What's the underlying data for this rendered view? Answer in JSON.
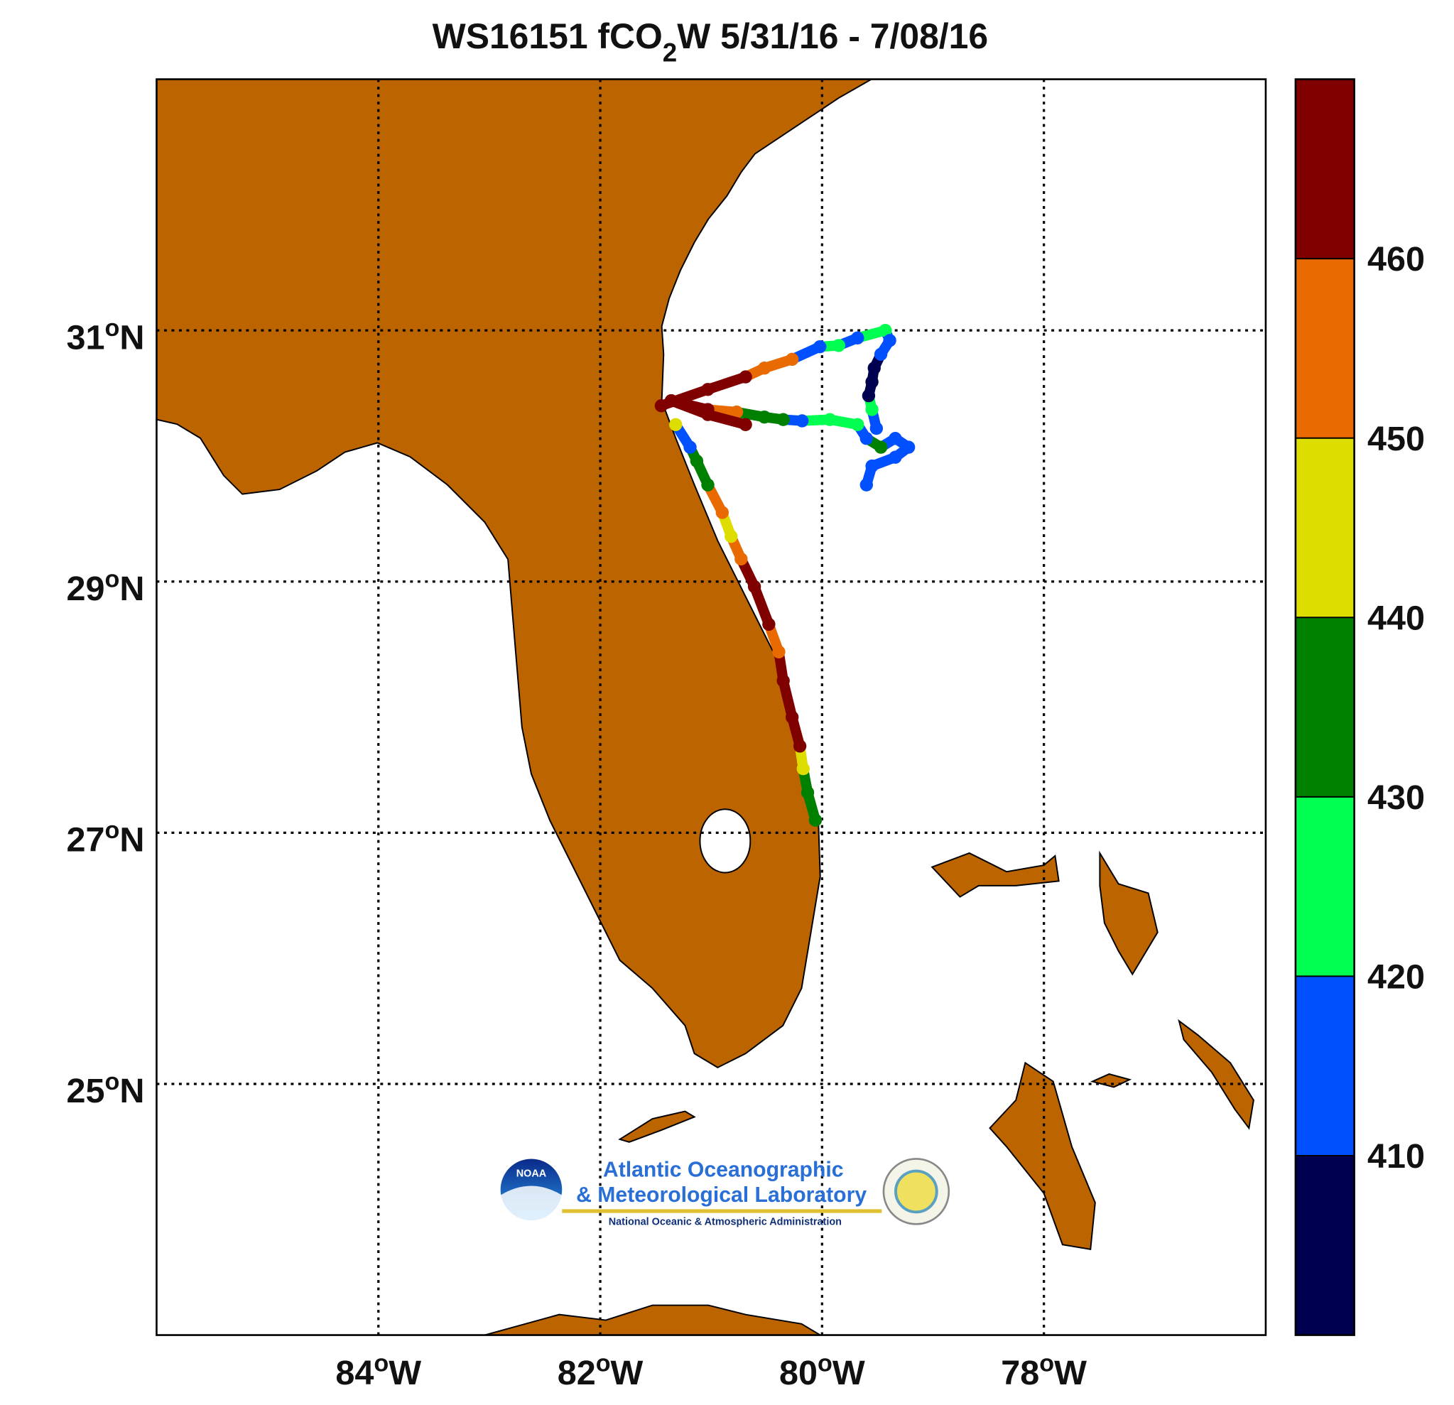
{
  "chart_data": {
    "type": "map",
    "title": {
      "prefix": "WS16151  fCO",
      "subscript": "2",
      "suffix": "W 5/31/16 - 7/08/16"
    },
    "xlim": [
      -86,
      -76
    ],
    "ylim": [
      23,
      33
    ],
    "xticks": [
      {
        "value": -84,
        "label": "84"
      },
      {
        "value": -82,
        "label": "82"
      },
      {
        "value": -80,
        "label": "80"
      },
      {
        "value": -78,
        "label": "78"
      }
    ],
    "yticks": [
      25,
      27,
      29,
      31
    ],
    "degree": "o",
    "x_hemisphere": "W",
    "y_hemisphere": "N",
    "grid": true,
    "land_color": "#bb6400",
    "colorbar": {
      "clim": [
        400,
        470
      ],
      "ticks": [
        410,
        420,
        430,
        440,
        450,
        460
      ],
      "colors": [
        "#000050",
        "#0050ff",
        "#00ff50",
        "#008000",
        "#dddd00",
        "#e86a00",
        "#800000"
      ]
    },
    "tracks": [
      {
        "lon": [
          -81.45,
          -81.03,
          -80.69,
          -80.52,
          -80.27,
          -80.02,
          -79.85,
          -79.68,
          -79.43,
          -79.39,
          -79.47,
          -79.53,
          -79.55,
          -79.58,
          -79.55,
          -79.51
        ],
        "lat": [
          30.4,
          30.53,
          30.63,
          30.7,
          30.77,
          30.87,
          30.88,
          30.94,
          31.0,
          30.92,
          30.81,
          30.7,
          30.59,
          30.48,
          30.37,
          30.22
        ],
        "values": [
          465,
          465,
          465,
          455,
          455,
          415,
          425,
          415,
          425,
          415,
          415,
          405,
          405,
          405,
          425,
          415
        ]
      },
      {
        "lon": [
          -81.36,
          -81.03,
          -80.77,
          -80.52,
          -80.35,
          -80.18,
          -79.93,
          -79.68,
          -79.6,
          -79.47,
          -79.34,
          -79.22,
          -79.34,
          -79.55,
          -79.6
        ],
        "lat": [
          30.44,
          30.37,
          30.35,
          30.31,
          30.29,
          30.28,
          30.29,
          30.25,
          30.14,
          30.07,
          30.14,
          30.07,
          29.99,
          29.92,
          29.77
        ],
        "values": [
          465,
          465,
          455,
          435,
          435,
          415,
          425,
          425,
          415,
          435,
          415,
          415,
          415,
          415,
          415
        ]
      },
      {
        "lon": [
          -81.36,
          -81.03,
          -80.69
        ],
        "lat": [
          30.44,
          30.33,
          30.25
        ],
        "values": [
          465,
          465,
          465
        ]
      },
      {
        "lon": [
          -81.32,
          -81.19,
          -81.13,
          -81.03,
          -80.9,
          -80.82,
          -80.73,
          -80.61,
          -80.48,
          -80.39,
          -80.35,
          -80.27,
          -80.2,
          -80.17,
          -80.13,
          -80.06
        ],
        "lat": [
          30.25,
          30.07,
          29.96,
          29.77,
          29.55,
          29.36,
          29.18,
          28.96,
          28.66,
          28.44,
          28.21,
          27.92,
          27.69,
          27.51,
          27.32,
          27.1
        ],
        "values": [
          445,
          415,
          435,
          435,
          455,
          445,
          455,
          465,
          465,
          455,
          465,
          465,
          465,
          445,
          435,
          435
        ]
      }
    ],
    "logo": {
      "badge": "NOAA",
      "line1": "Atlantic Oceanographic",
      "line2": "& Meteorological Laboratory",
      "line3": "National Oceanic & Atmospheric Administration"
    }
  }
}
